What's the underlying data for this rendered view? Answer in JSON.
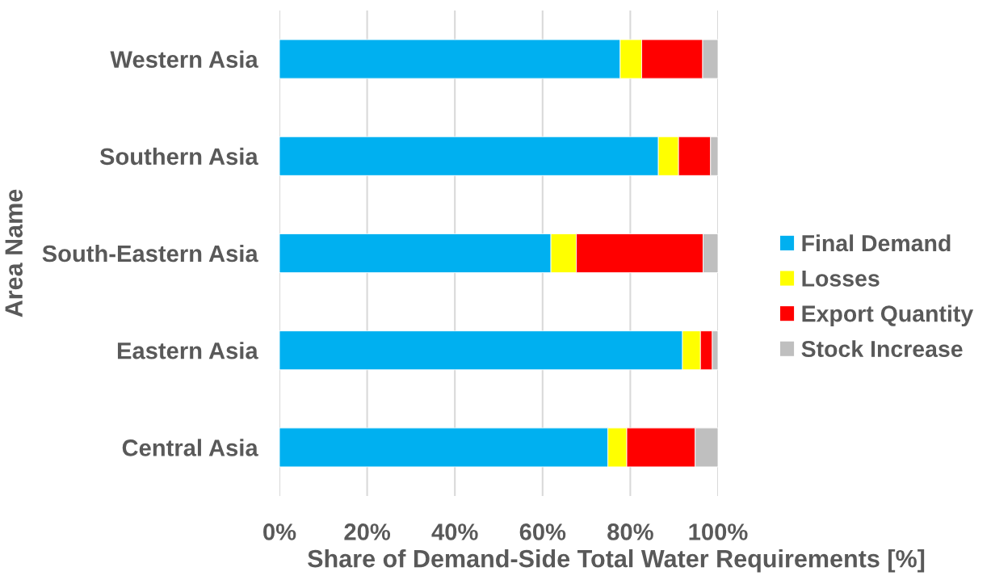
{
  "chart_data": {
    "type": "bar",
    "orientation": "horizontal",
    "stacked": true,
    "categories": [
      "Western Asia",
      "Southern Asia",
      "South-Eastern Asia",
      "Eastern Asia",
      "Central Asia"
    ],
    "series": [
      {
        "name": "Final Demand",
        "color": "#00b0f0",
        "values": [
          77.7,
          86.4,
          61.9,
          91.9,
          74.9
        ]
      },
      {
        "name": "Losses",
        "color": "#ffff00",
        "values": [
          4.9,
          4.6,
          5.8,
          4.1,
          4.3
        ]
      },
      {
        "name": "Export Quantity",
        "color": "#ff0000",
        "values": [
          13.9,
          7.3,
          28.9,
          2.7,
          15.6
        ]
      },
      {
        "name": "Stock Increase",
        "color": "#bfbfbf",
        "values": [
          3.5,
          1.7,
          3.4,
          1.3,
          5.2
        ]
      }
    ],
    "xlim": [
      0,
      100
    ],
    "xticks": [
      {
        "value": 0,
        "label": "0%"
      },
      {
        "value": 20,
        "label": "20%"
      },
      {
        "value": 40,
        "label": "40%"
      },
      {
        "value": 60,
        "label": "60%"
      },
      {
        "value": 80,
        "label": "80%"
      },
      {
        "value": 100,
        "label": "100%"
      }
    ],
    "xlabel": "Share of Demand-Side Total Water Requirements [%]",
    "ylabel": "Area Name",
    "grid": "x",
    "legend": "right"
  }
}
